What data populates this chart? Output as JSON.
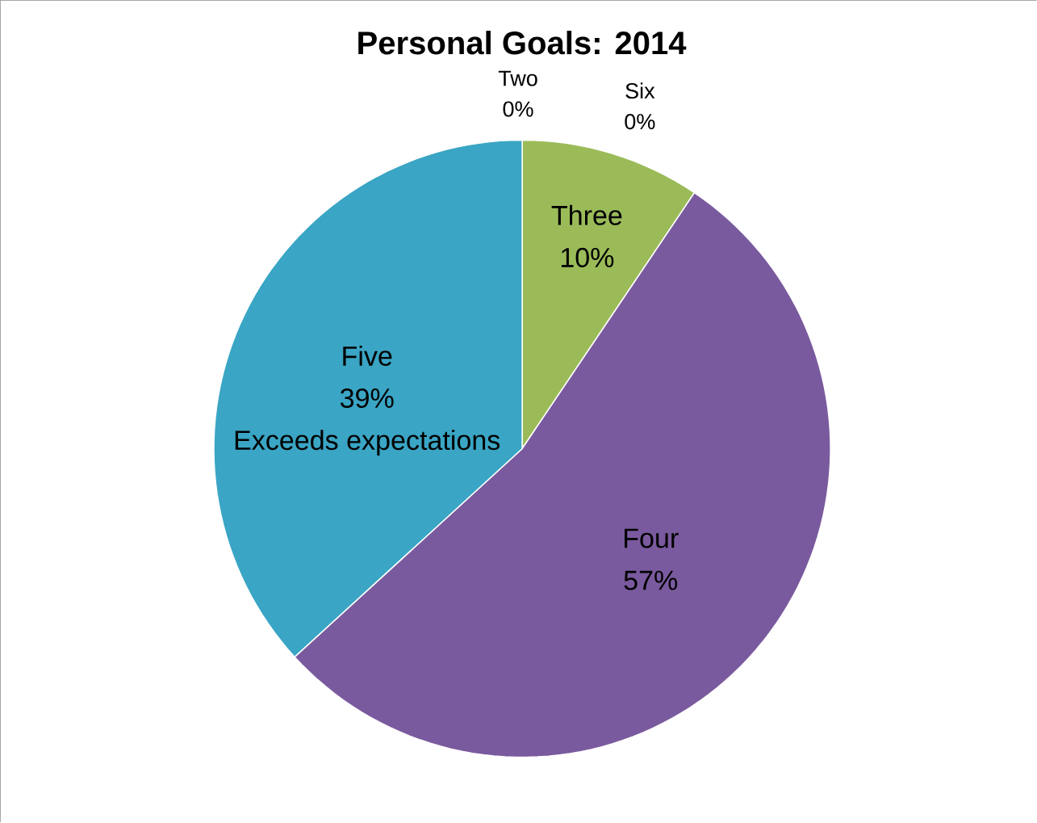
{
  "chart_data": {
    "type": "pie",
    "title": "Personal Goals: 2014",
    "categories": [
      "Two",
      "Three",
      "Four",
      "Five",
      "Six"
    ],
    "values": [
      0,
      10,
      57,
      39,
      0
    ],
    "value_labels": [
      "0%",
      "10%",
      "57%",
      "39%",
      "0%"
    ],
    "colors": [
      "#c0504d",
      "#9bbb59",
      "#7a5a9e",
      "#3aa5c4",
      "#f79646"
    ],
    "annotations": [
      {
        "text": "Exceeds expectations",
        "x": "Five"
      }
    ]
  }
}
